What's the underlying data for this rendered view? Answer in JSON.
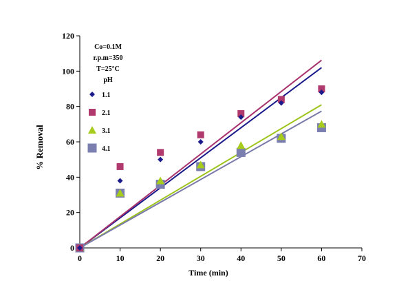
{
  "chart_data": {
    "type": "scatter",
    "title": "",
    "xlabel": "Time (min)",
    "ylabel": "% Removal",
    "xlim": [
      0,
      70
    ],
    "ylim": [
      0,
      120
    ],
    "x_ticks": [
      0,
      10,
      20,
      30,
      40,
      50,
      60,
      70
    ],
    "y_ticks": [
      0,
      20,
      40,
      60,
      80,
      100,
      120
    ],
    "grid": false,
    "legend_position": "top-left",
    "conditions": [
      "Co=0.1M",
      "r.p.m=350",
      "T=25°C"
    ],
    "legend_title": "pH",
    "x": [
      0,
      10,
      20,
      30,
      40,
      50,
      60
    ],
    "series": [
      {
        "name": "1.1",
        "marker": "diamond",
        "color": "#1a1a8c",
        "trend_color": "#1a1a8c",
        "trend_slope": 1.7,
        "values": [
          0,
          38,
          50,
          60,
          74,
          82,
          88
        ]
      },
      {
        "name": "2.1",
        "marker": "square",
        "color": "#b03a6e",
        "trend_color": "#a8326e",
        "trend_slope": 1.77,
        "values": [
          0,
          46,
          54,
          64,
          76,
          84,
          90
        ]
      },
      {
        "name": "3.1",
        "marker": "triangle",
        "color": "#a8cc1c",
        "trend_color": "#9cc41a",
        "trend_slope": 1.35,
        "values": [
          0,
          31,
          38,
          47,
          58,
          63,
          70
        ]
      },
      {
        "name": "4.1",
        "marker": "square-large",
        "color": "#7a7fb0",
        "trend_color": "#7a7aaa",
        "trend_slope": 1.29,
        "values": [
          0,
          31,
          36,
          46,
          54,
          62,
          68
        ]
      }
    ]
  }
}
